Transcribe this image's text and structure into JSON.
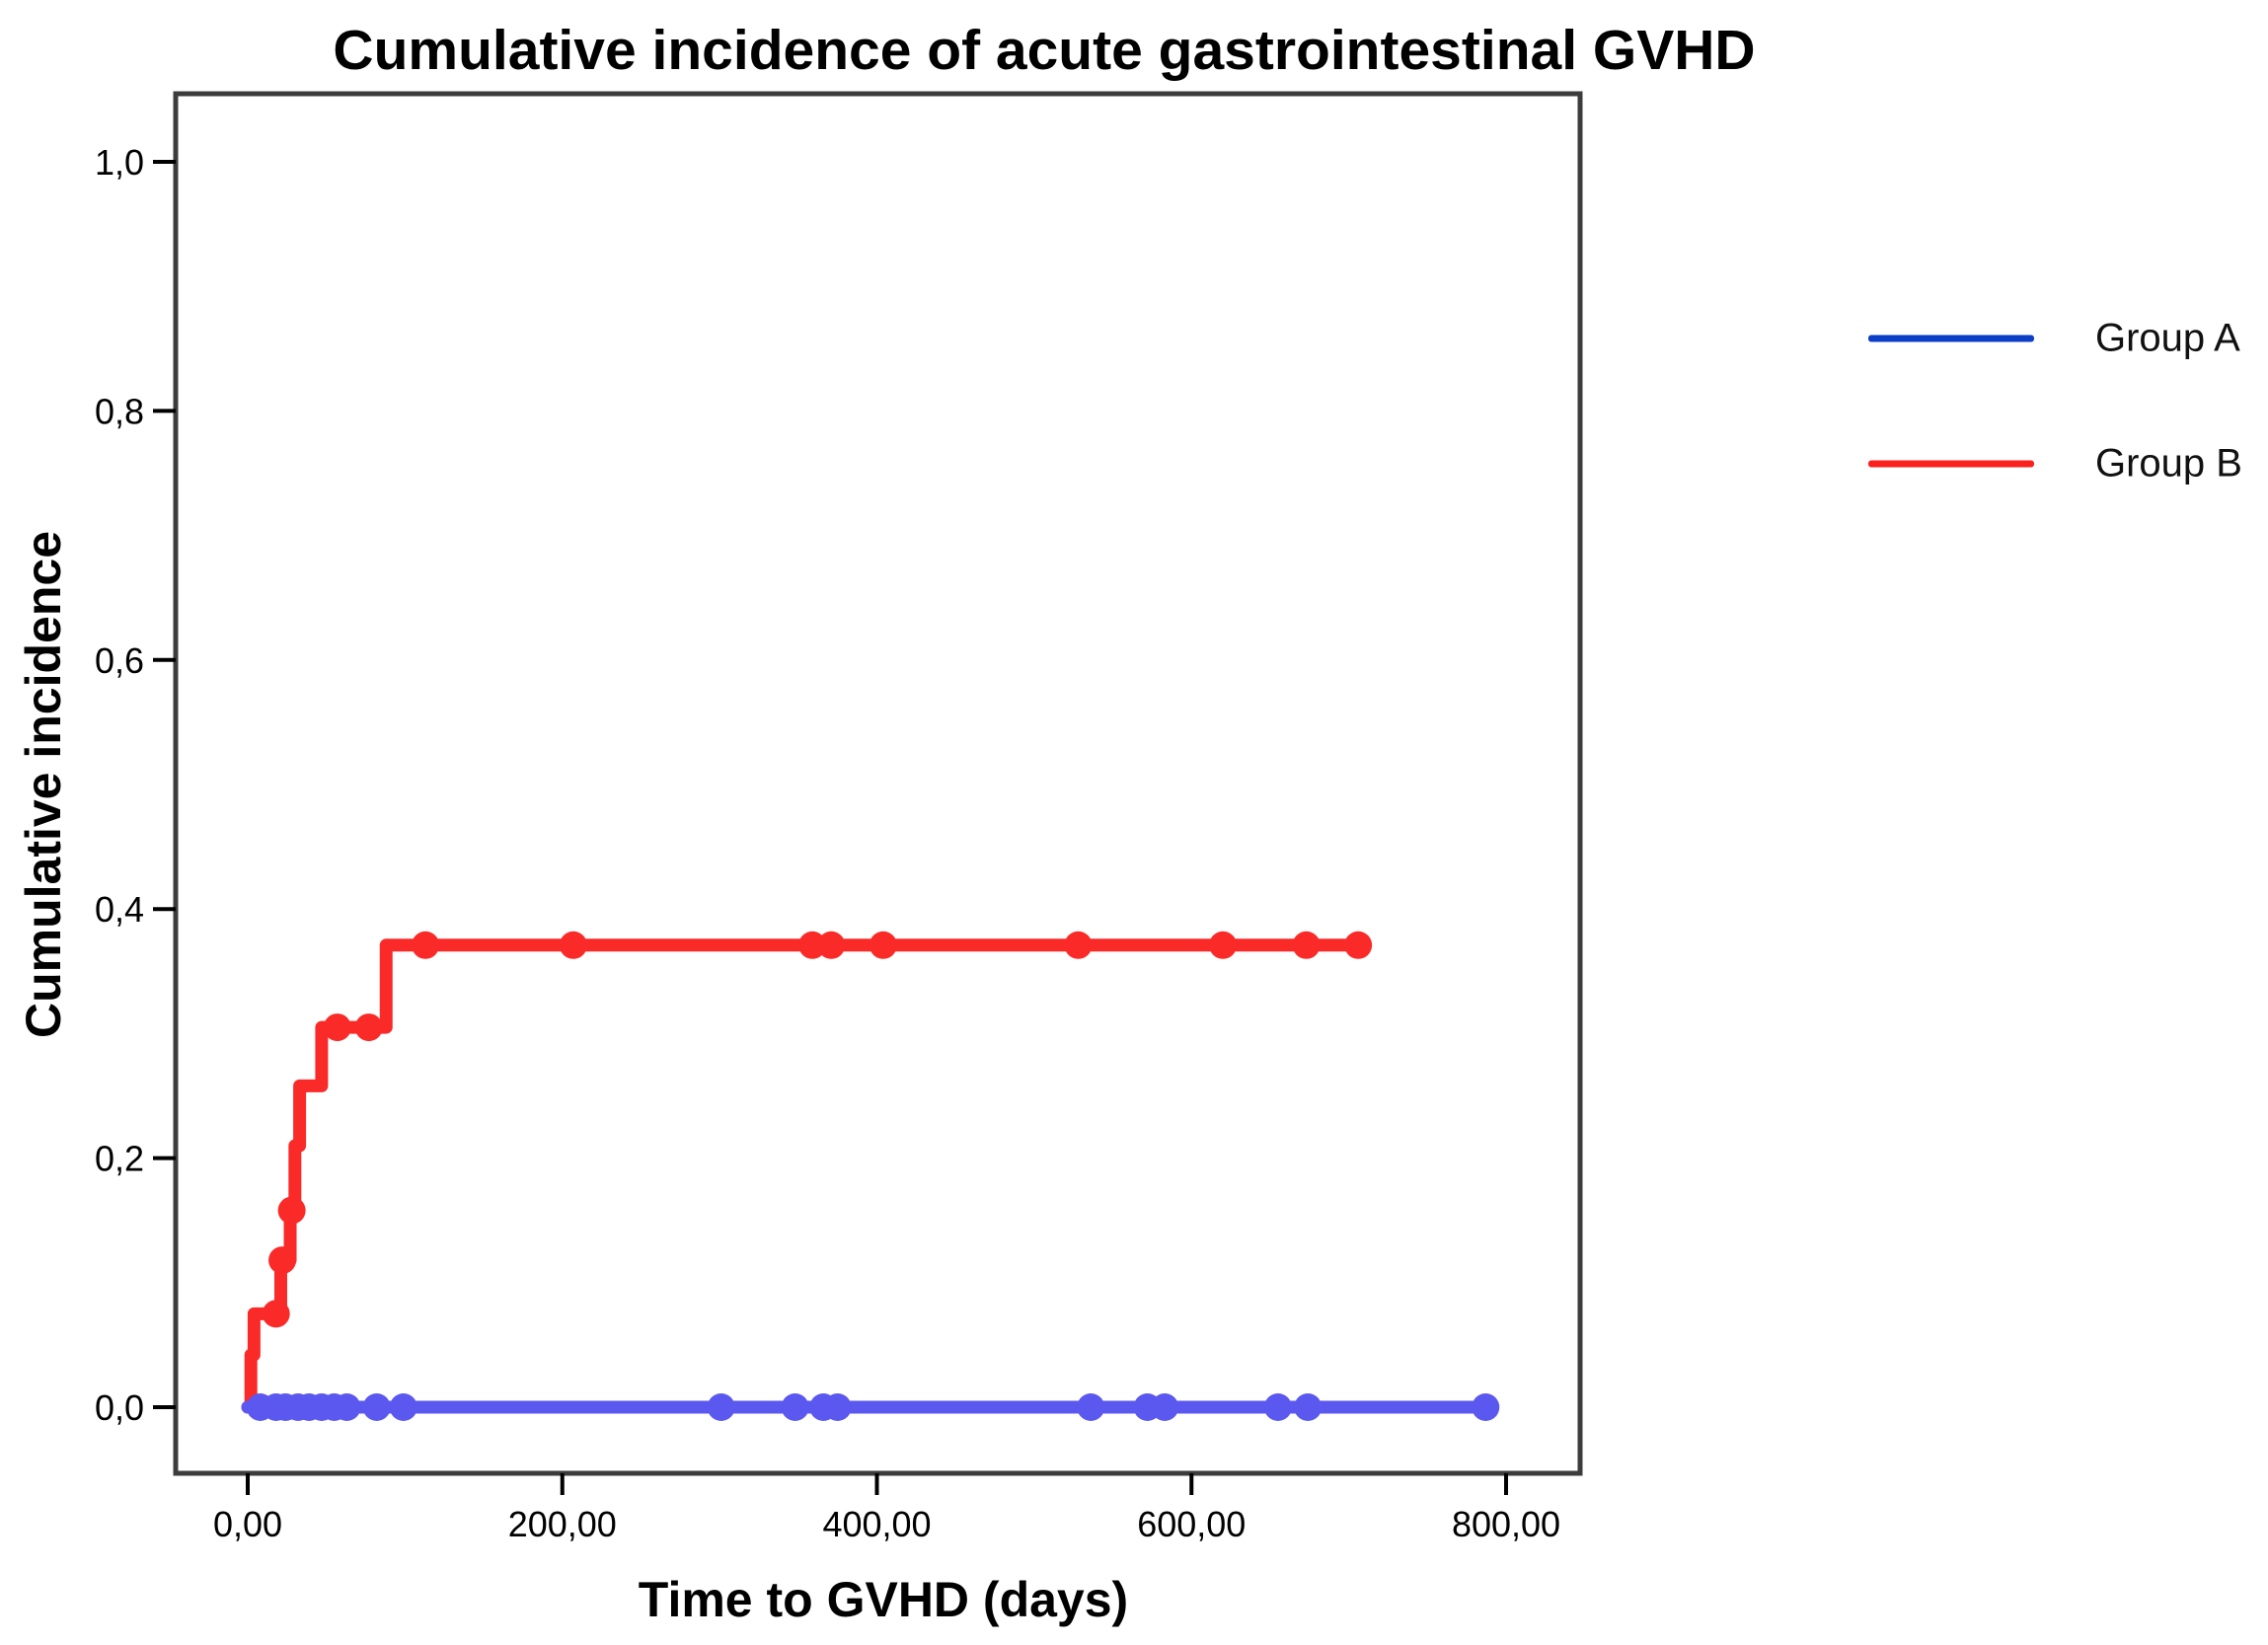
{
  "chart_data": {
    "type": "line",
    "subtype": "cumulative-incidence-step-curves",
    "title": "Cumulative incidence of acute gastrointestinal GVHD",
    "xlabel": "Time to GVHD (days)",
    "ylabel": "Cumulative incidence",
    "x_ticks": {
      "values": [
        0,
        200,
        400,
        600,
        800
      ],
      "labels": [
        "0,00",
        "200,00",
        "400,00",
        "600,00",
        "800,00"
      ]
    },
    "y_ticks": {
      "values": [
        0,
        0.2,
        0.4,
        0.6,
        0.8,
        1.0
      ],
      "labels": [
        "0,0",
        "0,2",
        "0,4",
        "0,6",
        "0,8",
        "1,0"
      ]
    },
    "xlim": [
      -46,
      847
    ],
    "ylim": [
      -0.053,
      1.055
    ],
    "grid": false,
    "legend_position": "right",
    "series": [
      {
        "name": "Group A",
        "color": "#5b58f0",
        "legend_color": "#0c3ec6",
        "points": [
          [
            0,
            0
          ],
          [
            787,
            0
          ]
        ],
        "censor_marks": [
          [
            8,
            0
          ],
          [
            18,
            0
          ],
          [
            24,
            0
          ],
          [
            32,
            0
          ],
          [
            39,
            0
          ],
          [
            47,
            0
          ],
          [
            55,
            0
          ],
          [
            63,
            0
          ],
          [
            82,
            0
          ],
          [
            99,
            0
          ],
          [
            301,
            0
          ],
          [
            348,
            0
          ],
          [
            366,
            0
          ],
          [
            375,
            0
          ],
          [
            536,
            0
          ],
          [
            572,
            0
          ],
          [
            583,
            0
          ],
          [
            655,
            0
          ],
          [
            674,
            0
          ],
          [
            787,
            0
          ]
        ]
      },
      {
        "name": "Group B",
        "color": "#fa2a28",
        "legend_color": "#fa201e",
        "points": [
          [
            0,
            0
          ],
          [
            2,
            0
          ],
          [
            2,
            0.042
          ],
          [
            4,
            0.042
          ],
          [
            4,
            0.075
          ],
          [
            21,
            0.075
          ],
          [
            21,
            0.118
          ],
          [
            27,
            0.118
          ],
          [
            27,
            0.158
          ],
          [
            30,
            0.158
          ],
          [
            30,
            0.21
          ],
          [
            33,
            0.21
          ],
          [
            33,
            0.258
          ],
          [
            47,
            0.258
          ],
          [
            47,
            0.305
          ],
          [
            88,
            0.305
          ],
          [
            88,
            0.371
          ],
          [
            706,
            0.371
          ]
        ],
        "censor_marks": [
          [
            18,
            0.075
          ],
          [
            22,
            0.118
          ],
          [
            28,
            0.158
          ],
          [
            57,
            0.305
          ],
          [
            77,
            0.305
          ],
          [
            113,
            0.371
          ],
          [
            207,
            0.371
          ],
          [
            359,
            0.371
          ],
          [
            371,
            0.371
          ],
          [
            404,
            0.371
          ],
          [
            528,
            0.371
          ],
          [
            620,
            0.371
          ],
          [
            673,
            0.371
          ],
          [
            706,
            0.371
          ]
        ]
      }
    ]
  }
}
